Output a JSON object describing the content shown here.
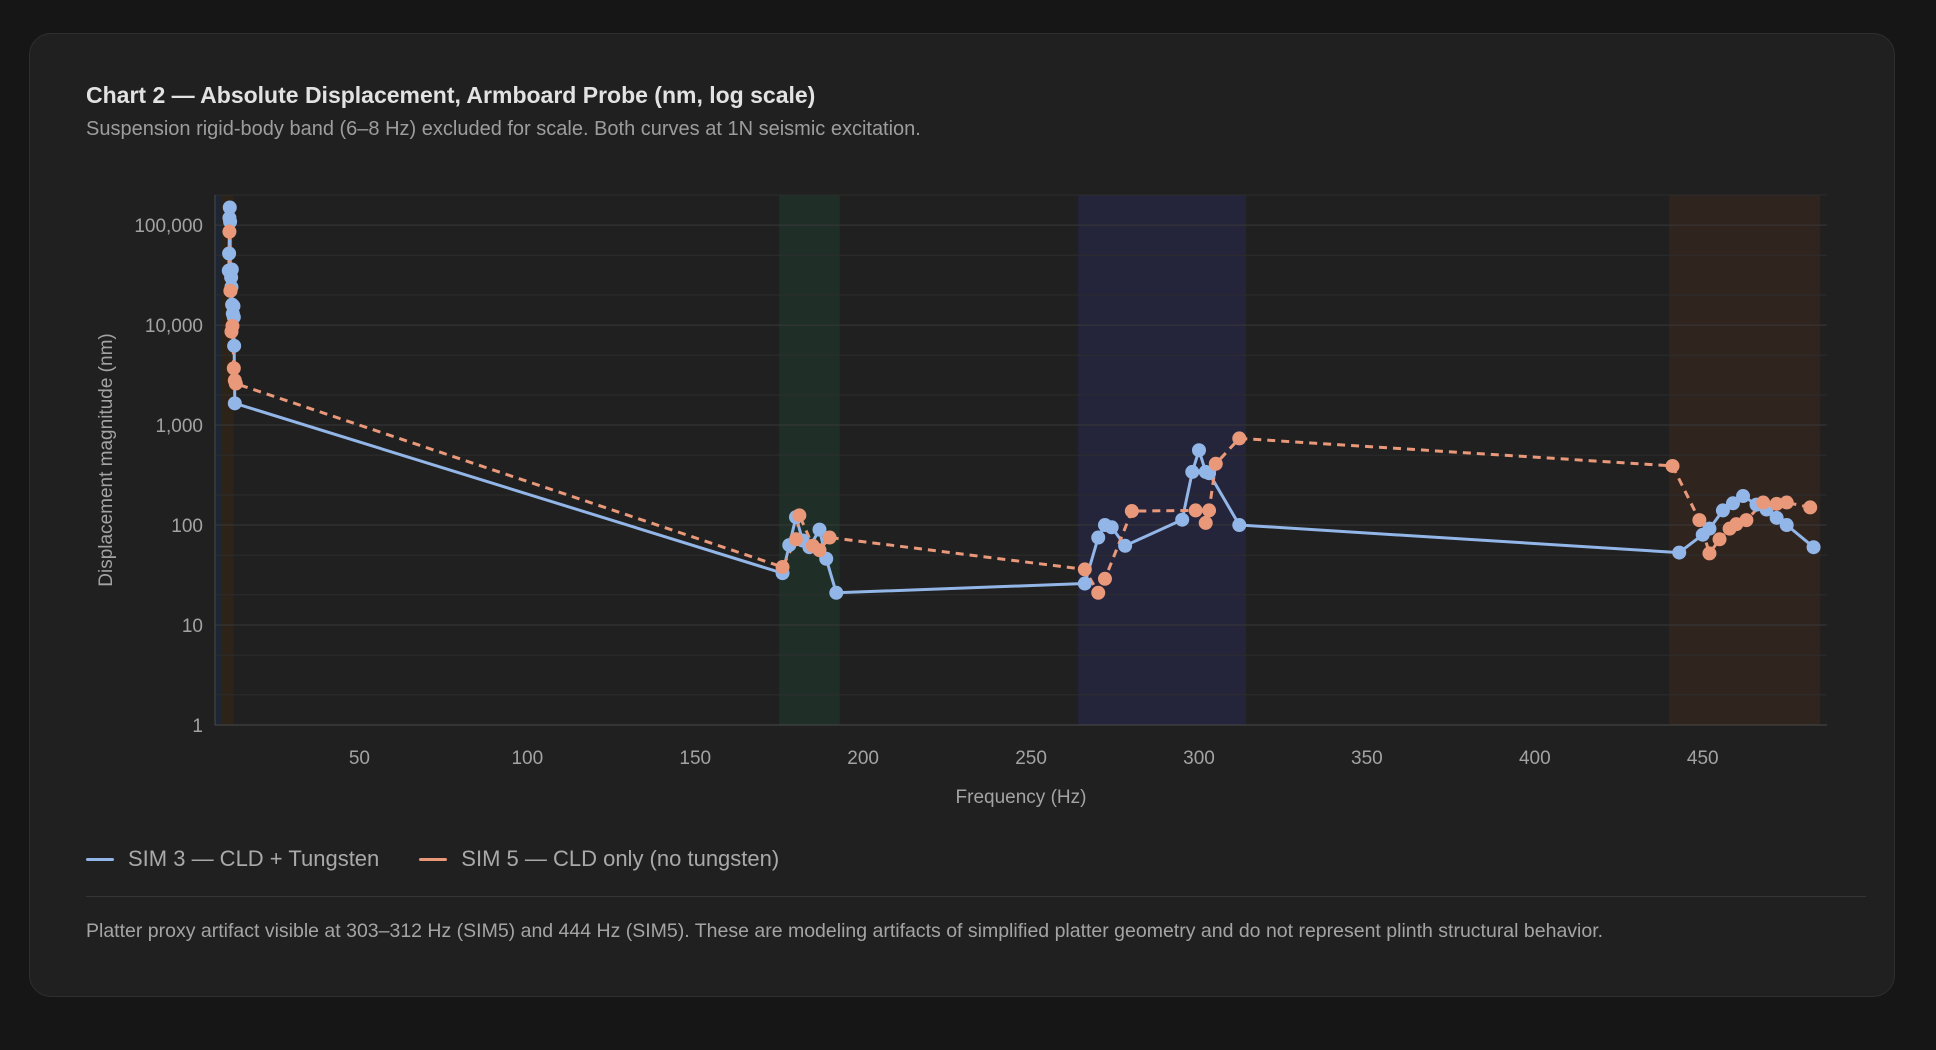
{
  "chart_data": {
    "type": "line",
    "title": "Chart 2 — Absolute Displacement, Armboard Probe (nm, log scale)",
    "subtitle": "Suspension rigid-body band (6–8 Hz) excluded for scale. Both curves at 1N seismic excitation.",
    "xlabel": "Frequency (Hz)",
    "ylabel": "Displacement magnitude (nm)",
    "yscale": "log",
    "xlim": [
      7,
      487
    ],
    "ylim": [
      1,
      200000
    ],
    "xticks": [
      50,
      100,
      150,
      200,
      250,
      300,
      350,
      400,
      450
    ],
    "xtick_labels": [
      "50",
      "100",
      "150",
      "200",
      "250",
      "300",
      "350",
      "400",
      "450"
    ],
    "yticks": [
      1,
      10,
      100,
      1000,
      10000,
      100000
    ],
    "ytick_labels": [
      "1",
      "10",
      "100",
      "1,000",
      "10,000",
      "100,000"
    ],
    "grid": true,
    "bands": [
      {
        "x0": 9,
        "x1": 12.5,
        "color": "#2e2318"
      },
      {
        "x0": 7,
        "x1": 9,
        "color": "#1e2633"
      },
      {
        "x0": 175,
        "x1": 193,
        "color": "#1f2f28"
      },
      {
        "x0": 264,
        "x1": 314,
        "color": "#24243a"
      },
      {
        "x0": 440,
        "x1": 485,
        "color": "#30241f"
      }
    ],
    "series": [
      {
        "name": "SIM 3 — CLD + Tungsten",
        "color": "#93b6e8",
        "dashed": false,
        "x": [
          11.1,
          11.2,
          11.3,
          11.4,
          11.5,
          11.6,
          11.8,
          11.9,
          12.0,
          12.1,
          12.3,
          12.5,
          12.6,
          12.7,
          12.9,
          176,
          178,
          180,
          182,
          184,
          187,
          189,
          192,
          266,
          270,
          272,
          274,
          278,
          295,
          298,
          300,
          302,
          303,
          312,
          443,
          450,
          452,
          456,
          459,
          462,
          466,
          469,
          472,
          475,
          483
        ],
        "y": [
          35000,
          52000,
          118000,
          150000,
          108000,
          22000,
          30000,
          24000,
          36000,
          16000,
          13000,
          15500,
          12000,
          6200,
          1650,
          33,
          63,
          120,
          70,
          60,
          90,
          46,
          21,
          26,
          75,
          100,
          95,
          62,
          113,
          340,
          560,
          340,
          330,
          100,
          53,
          80,
          92,
          140,
          165,
          195,
          160,
          143,
          118,
          100,
          60
        ]
      },
      {
        "name": "SIM 5 — CLD only (no tungsten)",
        "color": "#e9987a",
        "dashed": true,
        "x": [
          11.3,
          11.6,
          11.9,
          12.2,
          12.6,
          12.9,
          13.2,
          176,
          180,
          181,
          185,
          187,
          190,
          266,
          270,
          272,
          280,
          299,
          302,
          303,
          305,
          312,
          441,
          449,
          452,
          455,
          458,
          460,
          463,
          468,
          472,
          475,
          482
        ],
        "y": [
          86000,
          22000,
          8600,
          9800,
          3700,
          2800,
          2600,
          38,
          72,
          125,
          62,
          56,
          75,
          36,
          21,
          29,
          138,
          140,
          105,
          140,
          410,
          735,
          390,
          112,
          52,
          72,
          92,
          102,
          112,
          168,
          163,
          168,
          150
        ]
      }
    ]
  },
  "footnote": "Platter proxy artifact visible at 303–312 Hz (SIM5) and 444 Hz (SIM5). These are modeling artifacts of simplified platter geometry and do not represent plinth structural behavior."
}
